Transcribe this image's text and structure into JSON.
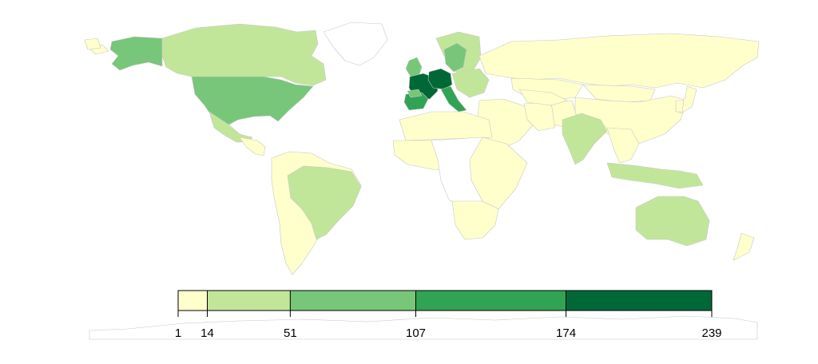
{
  "map": {
    "type": "choropleth",
    "projection": "world",
    "legend": {
      "placement": "bottom-center",
      "breaks": [
        1,
        14,
        51,
        107,
        174,
        239
      ],
      "break_labels": [
        "1",
        "14",
        "51",
        "107",
        "174",
        "239"
      ],
      "colors": [
        "#ffffcc",
        "#c2e699",
        "#78c679",
        "#31a354",
        "#006837"
      ]
    },
    "colors": {
      "no_data": "#ffffff",
      "border": "#c8c8c8",
      "legend_outline": "#000000"
    },
    "regions_by_class": [
      {
        "class": 0,
        "regions": [
          "russia",
          "china",
          "mongolia",
          "kazakhstan",
          "central-asia",
          "middle-east",
          "iran",
          "afghanistan-pakistan",
          "south-america",
          "mexico-central",
          "west-africa",
          "north-africa",
          "east-africa",
          "southern-africa",
          "southeast-asia",
          "japan",
          "korea",
          "new-zealand",
          "greenland-fragment",
          "alaska-west-tip"
        ]
      },
      {
        "class": 1,
        "regions": [
          "canada",
          "brazil",
          "australia",
          "india",
          "indonesia",
          "scandinavia-north",
          "eastern-europe",
          "mexico-north"
        ]
      },
      {
        "class": 2,
        "regions": [
          "alaska",
          "usa",
          "uk-ireland",
          "iberia-north",
          "nordic-south"
        ]
      },
      {
        "class": 3,
        "regions": [
          "spain",
          "italy"
        ]
      },
      {
        "class": 4,
        "regions": [
          "france",
          "germany"
        ]
      }
    ]
  }
}
